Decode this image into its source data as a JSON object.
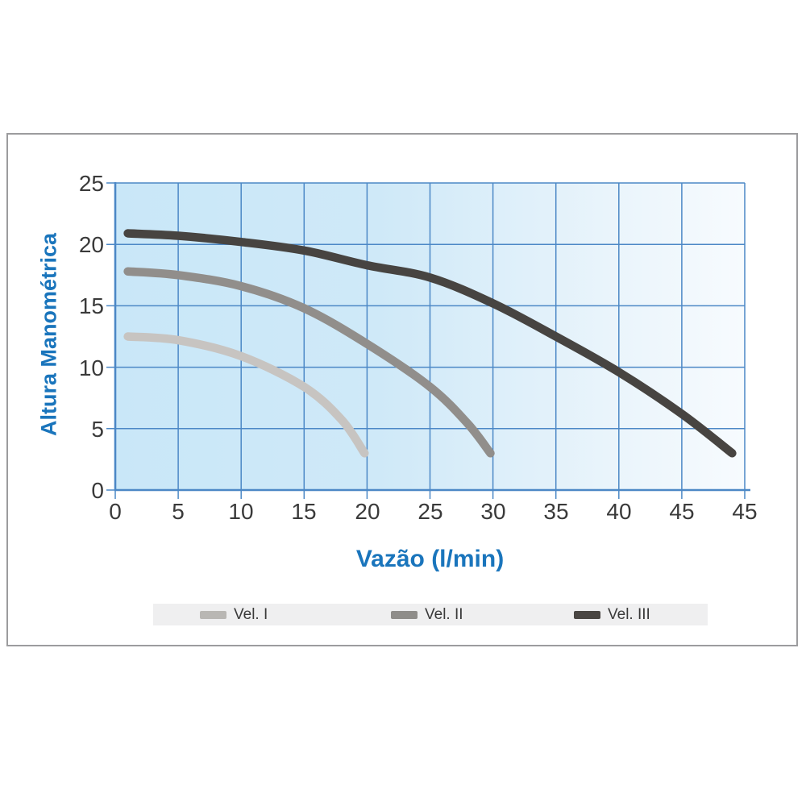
{
  "chart_data": {
    "type": "line",
    "title": "",
    "xlabel": "Vazão (l/min)",
    "ylabel": "Altura Manométrica",
    "x_tick_labels": [
      "0",
      "5",
      "10",
      "15",
      "20",
      "25",
      "30",
      "35",
      "40",
      "45",
      "45"
    ],
    "y_tick_labels": [
      "0",
      "5",
      "10",
      "15",
      "20",
      "25"
    ],
    "xlim": [
      0,
      50
    ],
    "ylim": [
      0,
      25
    ],
    "axis_note": "rightmost x gridline repeats the label 45 (duplicate label printed in source chart)",
    "grid": true,
    "grid_color": "#4c88c6",
    "axis_color": "#4c88c6",
    "tick_label_color": "#3a3a3a",
    "title_color": "#1a75bc",
    "plot_bg_gradient": [
      "#c9e7f8",
      "#cfe9f8",
      "#e9f4fb",
      "#f7fbfe"
    ],
    "series": [
      {
        "name": "Vel. I",
        "color": "#c7c4c1",
        "points": [
          [
            1,
            12.5
          ],
          [
            5,
            12.2
          ],
          [
            10,
            10.9
          ],
          [
            15,
            8.4
          ],
          [
            18,
            5.7
          ],
          [
            19.8,
            3.0
          ]
        ]
      },
      {
        "name": "Vel. II",
        "color": "#918e8b",
        "points": [
          [
            1,
            17.8
          ],
          [
            5,
            17.5
          ],
          [
            10,
            16.6
          ],
          [
            15,
            14.8
          ],
          [
            20,
            11.9
          ],
          [
            25,
            8.4
          ],
          [
            28,
            5.4
          ],
          [
            29.8,
            3.0
          ]
        ]
      },
      {
        "name": "Vel. III",
        "color": "#474441",
        "points": [
          [
            1,
            20.9
          ],
          [
            5,
            20.7
          ],
          [
            10,
            20.2
          ],
          [
            15,
            19.5
          ],
          [
            20,
            18.3
          ],
          [
            25,
            17.3
          ],
          [
            30,
            15.2
          ],
          [
            35,
            12.5
          ],
          [
            40,
            9.6
          ],
          [
            45,
            6.2
          ],
          [
            49,
            3.0
          ]
        ]
      }
    ]
  },
  "legend": {
    "background": "#efeff0",
    "items": [
      {
        "label": "Vel. I",
        "color": "#b9b7b4"
      },
      {
        "label": "Vel. II",
        "color": "#8f8d8a"
      },
      {
        "label": "Vel. III",
        "color": "#4a4643"
      }
    ]
  }
}
